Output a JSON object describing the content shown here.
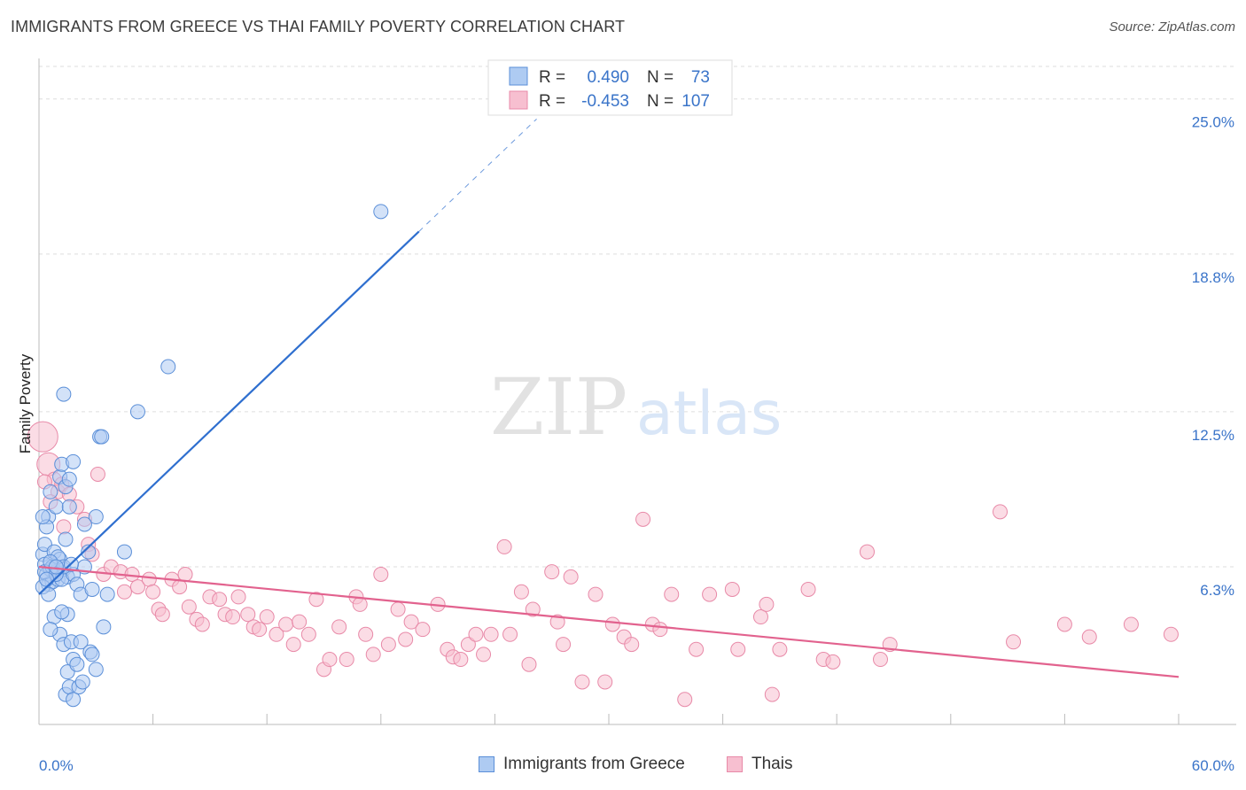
{
  "title": "IMMIGRANTS FROM GREECE VS THAI FAMILY POVERTY CORRELATION CHART",
  "source": "Source: ZipAtlas.com",
  "watermark": {
    "zip": "ZIP",
    "atlas": "atlas"
  },
  "legend": {
    "rows": [
      {
        "r_label": "R =",
        "r_value": "0.490",
        "n_label": "N =",
        "n_value": "73"
      },
      {
        "r_label": "R =",
        "r_value": "-0.453",
        "n_label": "N =",
        "n_value": "107"
      }
    ]
  },
  "bottom_legend": {
    "series1": "Immigrants from Greece",
    "series2": "Thais"
  },
  "colors": {
    "blue_fill": "#aecbf2",
    "blue_stroke": "#5b8fd8",
    "blue_line": "#2f6fcf",
    "pink_fill": "#f7bfd0",
    "pink_stroke": "#e88aa8",
    "pink_line": "#e2628e",
    "tick_text": "#3a74c9",
    "grid": "#dddddd"
  },
  "chart_data": {
    "type": "scatter",
    "title": "IMMIGRANTS FROM GREECE VS THAI FAMILY POVERTY CORRELATION CHART",
    "xlabel": "",
    "ylabel": "Family Poverty",
    "xlim": [
      0,
      60
    ],
    "ylim": [
      0,
      26.3
    ],
    "x_tick_labels": [
      "0.0%",
      "60.0%"
    ],
    "y_ticks": [
      6.3,
      12.5,
      18.8,
      25.0
    ],
    "y_tick_labels": [
      "6.3%",
      "12.5%",
      "18.8%",
      "25.0%"
    ],
    "grid": "horizontal dashed",
    "legend_position": "top-center",
    "series": [
      {
        "name": "Immigrants from Greece",
        "r": 0.49,
        "n": 73,
        "trend": {
          "x": [
            0.0,
            20.0
          ],
          "y": [
            5.2,
            19.7
          ],
          "dashed_extension": {
            "x": [
              20.0,
              26.2
            ],
            "y": [
              19.7,
              24.2
            ]
          }
        },
        "points": [
          [
            0.2,
            6.8
          ],
          [
            0.3,
            6.4
          ],
          [
            0.4,
            6.0
          ],
          [
            0.5,
            5.6
          ],
          [
            0.6,
            6.2
          ],
          [
            0.3,
            7.2
          ],
          [
            0.5,
            8.3
          ],
          [
            0.7,
            5.7
          ],
          [
            0.9,
            6.1
          ],
          [
            1.0,
            5.8
          ],
          [
            0.8,
            6.9
          ],
          [
            1.1,
            6.6
          ],
          [
            1.3,
            6.2
          ],
          [
            1.4,
            7.4
          ],
          [
            1.5,
            5.9
          ],
          [
            1.2,
            5.8
          ],
          [
            0.4,
            7.9
          ],
          [
            0.6,
            9.3
          ],
          [
            0.9,
            8.7
          ],
          [
            1.1,
            9.9
          ],
          [
            1.2,
            10.4
          ],
          [
            1.4,
            9.5
          ],
          [
            1.6,
            9.8
          ],
          [
            1.8,
            10.5
          ],
          [
            1.6,
            8.7
          ],
          [
            1.8,
            6.0
          ],
          [
            2.0,
            5.6
          ],
          [
            2.2,
            5.2
          ],
          [
            2.4,
            6.3
          ],
          [
            2.6,
            6.9
          ],
          [
            2.8,
            5.4
          ],
          [
            3.0,
            8.3
          ],
          [
            2.4,
            8.0
          ],
          [
            1.3,
            13.2
          ],
          [
            3.2,
            11.5
          ],
          [
            3.3,
            11.5
          ],
          [
            5.2,
            12.5
          ],
          [
            6.8,
            14.3
          ],
          [
            18.0,
            20.5
          ],
          [
            3.6,
            5.2
          ],
          [
            4.5,
            6.9
          ],
          [
            0.8,
            4.3
          ],
          [
            1.1,
            3.6
          ],
          [
            1.3,
            3.2
          ],
          [
            1.5,
            4.4
          ],
          [
            1.7,
            3.3
          ],
          [
            1.8,
            2.6
          ],
          [
            1.5,
            2.1
          ],
          [
            2.0,
            2.4
          ],
          [
            2.2,
            3.3
          ],
          [
            1.4,
            1.2
          ],
          [
            1.6,
            1.5
          ],
          [
            1.8,
            1.0
          ],
          [
            2.1,
            1.5
          ],
          [
            2.3,
            1.7
          ],
          [
            2.7,
            2.9
          ],
          [
            2.8,
            2.8
          ],
          [
            3.0,
            2.2
          ],
          [
            3.4,
            3.9
          ],
          [
            0.2,
            5.5
          ],
          [
            0.5,
            5.2
          ],
          [
            0.7,
            6.3
          ],
          [
            1.0,
            6.7
          ],
          [
            1.3,
            6.3
          ],
          [
            0.6,
            3.8
          ],
          [
            1.2,
            4.5
          ],
          [
            0.3,
            6.1
          ],
          [
            0.6,
            6.5
          ],
          [
            0.9,
            6.0
          ],
          [
            0.2,
            8.3
          ],
          [
            0.9,
            6.3
          ],
          [
            0.4,
            5.8
          ],
          [
            1.7,
            6.4
          ]
        ]
      },
      {
        "name": "Thais",
        "r": -0.453,
        "n": 107,
        "trend": {
          "x": [
            0.0,
            60.0
          ],
          "y": [
            6.3,
            1.9
          ]
        },
        "points": [
          [
            0.2,
            11.5
          ],
          [
            0.5,
            10.4
          ],
          [
            0.8,
            9.8
          ],
          [
            1.0,
            9.3
          ],
          [
            1.2,
            9.6
          ],
          [
            1.6,
            9.2
          ],
          [
            2.0,
            8.7
          ],
          [
            2.4,
            8.2
          ],
          [
            3.1,
            10.0
          ],
          [
            3.4,
            6.0
          ],
          [
            2.6,
            7.2
          ],
          [
            2.8,
            6.8
          ],
          [
            3.8,
            6.3
          ],
          [
            4.3,
            6.1
          ],
          [
            4.5,
            5.3
          ],
          [
            4.9,
            6.0
          ],
          [
            5.2,
            5.5
          ],
          [
            5.8,
            5.8
          ],
          [
            6.0,
            5.3
          ],
          [
            6.3,
            4.6
          ],
          [
            6.5,
            4.4
          ],
          [
            7.0,
            5.8
          ],
          [
            7.4,
            5.5
          ],
          [
            7.7,
            6.0
          ],
          [
            7.9,
            4.7
          ],
          [
            8.3,
            4.2
          ],
          [
            8.6,
            4.0
          ],
          [
            9.0,
            5.1
          ],
          [
            9.5,
            5.0
          ],
          [
            9.8,
            4.4
          ],
          [
            10.2,
            4.3
          ],
          [
            10.5,
            5.1
          ],
          [
            11.0,
            4.4
          ],
          [
            11.3,
            3.9
          ],
          [
            11.6,
            3.8
          ],
          [
            12.0,
            4.3
          ],
          [
            12.5,
            3.6
          ],
          [
            13.0,
            4.0
          ],
          [
            13.4,
            3.2
          ],
          [
            13.7,
            4.1
          ],
          [
            14.2,
            3.6
          ],
          [
            14.6,
            5.0
          ],
          [
            15.0,
            2.2
          ],
          [
            15.3,
            2.6
          ],
          [
            15.8,
            3.9
          ],
          [
            16.2,
            2.6
          ],
          [
            16.7,
            5.1
          ],
          [
            16.9,
            4.8
          ],
          [
            17.2,
            3.6
          ],
          [
            17.6,
            2.8
          ],
          [
            18.0,
            6.0
          ],
          [
            18.4,
            3.2
          ],
          [
            18.9,
            4.6
          ],
          [
            19.3,
            3.4
          ],
          [
            19.6,
            4.1
          ],
          [
            20.2,
            3.8
          ],
          [
            21.0,
            4.8
          ],
          [
            21.5,
            3.0
          ],
          [
            21.8,
            2.7
          ],
          [
            22.2,
            2.6
          ],
          [
            22.6,
            3.2
          ],
          [
            23.0,
            3.6
          ],
          [
            23.4,
            2.8
          ],
          [
            23.8,
            3.6
          ],
          [
            24.5,
            7.1
          ],
          [
            24.8,
            3.6
          ],
          [
            25.4,
            5.3
          ],
          [
            25.8,
            2.4
          ],
          [
            26.0,
            4.6
          ],
          [
            27.3,
            4.1
          ],
          [
            27.6,
            3.2
          ],
          [
            27.0,
            6.1
          ],
          [
            28.0,
            5.9
          ],
          [
            28.6,
            1.7
          ],
          [
            29.3,
            5.2
          ],
          [
            29.8,
            1.7
          ],
          [
            30.2,
            4.0
          ],
          [
            30.8,
            3.5
          ],
          [
            31.2,
            3.2
          ],
          [
            31.8,
            8.2
          ],
          [
            32.3,
            4.0
          ],
          [
            32.7,
            3.8
          ],
          [
            33.3,
            5.2
          ],
          [
            34.0,
            1.0
          ],
          [
            34.6,
            3.0
          ],
          [
            35.3,
            5.2
          ],
          [
            36.5,
            5.4
          ],
          [
            36.8,
            3.0
          ],
          [
            38.0,
            4.3
          ],
          [
            38.3,
            4.8
          ],
          [
            38.6,
            1.2
          ],
          [
            39.0,
            3.0
          ],
          [
            40.5,
            5.4
          ],
          [
            41.3,
            2.6
          ],
          [
            41.8,
            2.5
          ],
          [
            43.6,
            6.9
          ],
          [
            0.3,
            9.7
          ],
          [
            0.6,
            8.9
          ],
          [
            1.3,
            7.9
          ],
          [
            44.8,
            3.2
          ],
          [
            44.3,
            2.6
          ],
          [
            50.6,
            8.5
          ],
          [
            51.3,
            3.3
          ],
          [
            54.0,
            4.0
          ],
          [
            55.3,
            3.5
          ],
          [
            57.5,
            4.0
          ],
          [
            59.6,
            3.6
          ]
        ]
      }
    ]
  }
}
